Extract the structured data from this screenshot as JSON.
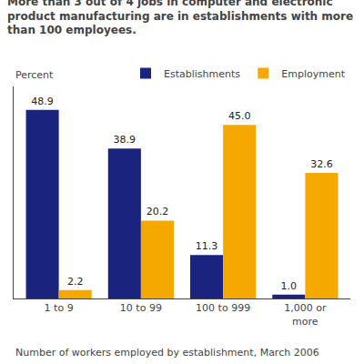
{
  "chart_data": {
    "type": "bar",
    "title": "More than 3 out of 4 jobs in computer and electronic\nproduct manufacturing are in establishments with more\nthan 100 employees.",
    "ylabel": "Percent",
    "annotations": [
      "Number of workers employed by establishment, March 2006"
    ],
    "categories": [
      "1 to 9",
      "10 to 99",
      "100 to 999",
      "1,000 or\nmore"
    ],
    "series": [
      {
        "name": "Establishments",
        "color": "#1a237e",
        "values": [
          48.9,
          38.9,
          11.3,
          1.0
        ],
        "value_labels": [
          "48.9",
          "38.9",
          "11.3",
          "1.0"
        ]
      },
      {
        "name": "Employment",
        "color": "#f5a800",
        "values": [
          2.2,
          20.2,
          45.0,
          32.6
        ],
        "value_labels": [
          "2.2",
          "20.2",
          "45.0",
          "32.6"
        ]
      }
    ],
    "ylim": [
      0,
      55
    ],
    "tick_labels": "x",
    "grid": false,
    "legend": "upper right",
    "data_labels": true
  }
}
